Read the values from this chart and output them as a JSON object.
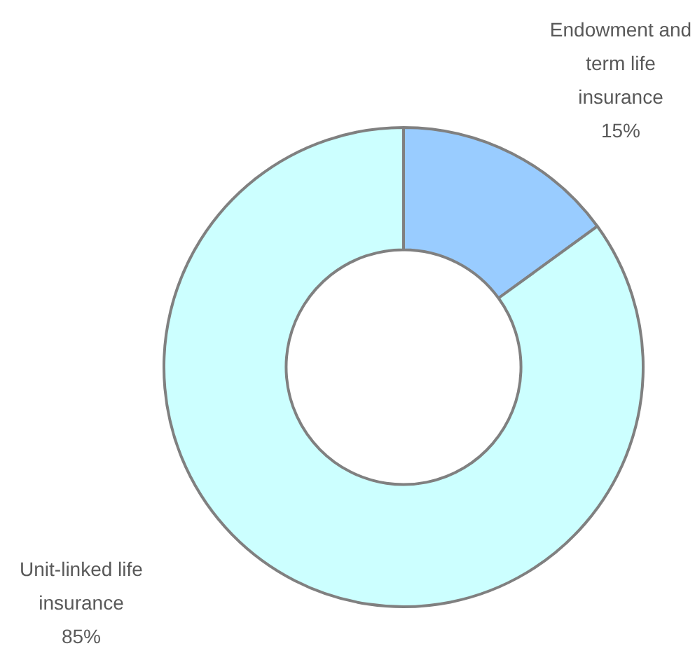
{
  "chart_data": {
    "type": "donut",
    "categories": [
      "Endowment and term life insurance",
      "Unit-linked life insurance"
    ],
    "values": [
      15,
      85
    ],
    "colors": [
      "#99ccff",
      "#ccffff"
    ],
    "value_labels": [
      "15%",
      "85%"
    ],
    "legend": false
  }
}
